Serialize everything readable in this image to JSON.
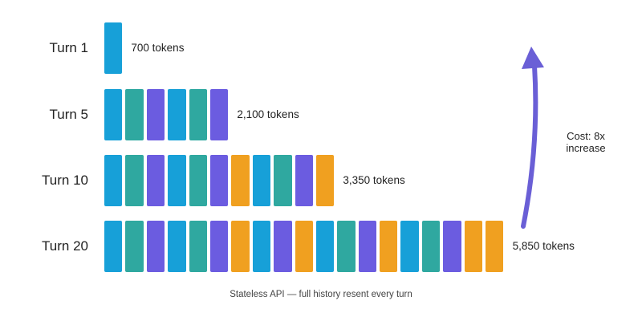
{
  "colors": {
    "blue": "#17a0d8",
    "teal": "#2fa8a0",
    "purple": "#6b5ce0",
    "orange": "#f0a020",
    "arrow": "#6a5fd6"
  },
  "rows": [
    {
      "label": "Turn 1",
      "tokens": "700 tokens",
      "blocks": [
        "blue"
      ]
    },
    {
      "label": "Turn 5",
      "tokens": "2,100 tokens",
      "blocks": [
        "blue",
        "teal",
        "purple",
        "blue",
        "teal",
        "purple"
      ]
    },
    {
      "label": "Turn 10",
      "tokens": "3,350 tokens",
      "blocks": [
        "blue",
        "teal",
        "purple",
        "blue",
        "teal",
        "purple",
        "orange",
        "blue",
        "teal",
        "purple",
        "orange"
      ]
    },
    {
      "label": "Turn 20",
      "tokens": "5,850 tokens",
      "blocks": [
        "blue",
        "teal",
        "purple",
        "blue",
        "teal",
        "purple",
        "orange",
        "blue",
        "purple",
        "orange",
        "blue",
        "teal",
        "purple",
        "orange",
        "blue",
        "teal",
        "purple",
        "orange",
        "orange"
      ]
    }
  ],
  "cost_label": "Cost: 8x increase",
  "caption": "Stateless API — full history resent every turn"
}
